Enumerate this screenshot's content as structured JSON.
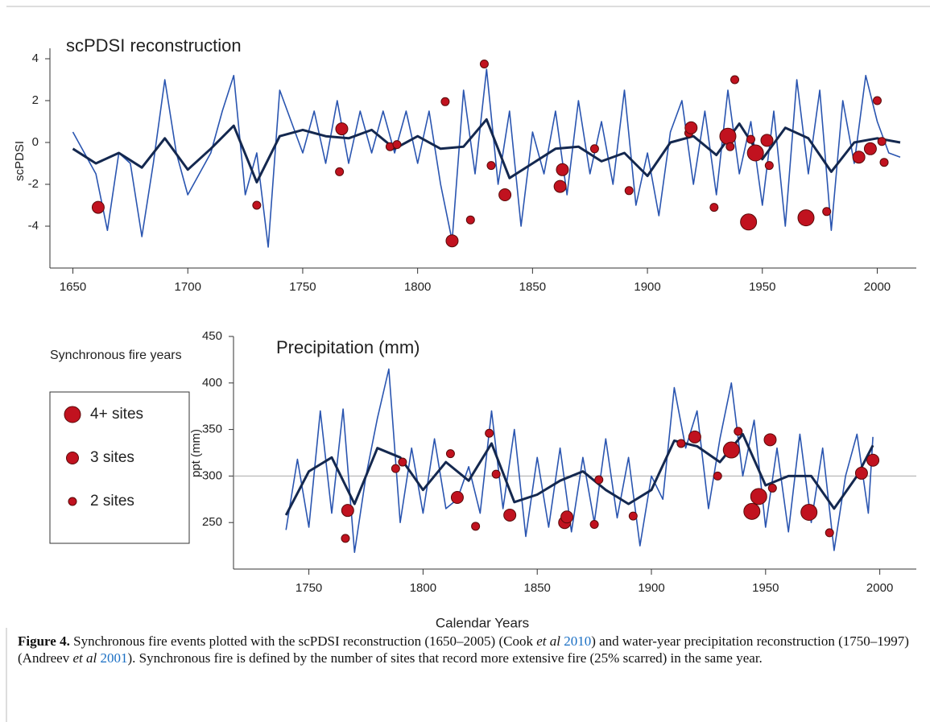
{
  "chart_data": [
    {
      "type": "line",
      "title": "scPDSI reconstruction",
      "y_label": "scPDSI",
      "xlim": [
        1640,
        2017
      ],
      "xticks": [
        1650,
        1700,
        1750,
        1800,
        1850,
        1900,
        1950,
        2000
      ],
      "ylim": [
        -6,
        4.5
      ],
      "yticks": [
        -4,
        -2,
        0,
        2,
        4
      ],
      "series": [
        {
          "color": "#2a55b0",
          "width": 1.6,
          "x": [
            1650,
            1655,
            1660,
            1665,
            1670,
            1675,
            1680,
            1685,
            1690,
            1695,
            1700,
            1705,
            1710,
            1715,
            1720,
            1725,
            1730,
            1735,
            1740,
            1745,
            1750,
            1755,
            1760,
            1765,
            1770,
            1775,
            1780,
            1785,
            1790,
            1795,
            1800,
            1805,
            1810,
            1815,
            1820,
            1825,
            1830,
            1835,
            1840,
            1845,
            1850,
            1855,
            1860,
            1865,
            1870,
            1875,
            1880,
            1885,
            1890,
            1895,
            1900,
            1905,
            1910,
            1915,
            1920,
            1925,
            1930,
            1935,
            1940,
            1945,
            1950,
            1955,
            1960,
            1965,
            1970,
            1975,
            1980,
            1985,
            1990,
            1995,
            2000,
            2005,
            2010
          ],
          "values": [
            0.5,
            -0.5,
            -1.5,
            -4.2,
            -0.5,
            -1.0,
            -4.5,
            -1.0,
            3.0,
            -0.5,
            -2.5,
            -1.5,
            -0.5,
            1.5,
            3.2,
            -2.5,
            -0.5,
            -5.0,
            2.5,
            1.0,
            -0.5,
            1.5,
            -1.0,
            2.0,
            -1.0,
            1.5,
            -0.5,
            1.5,
            -0.5,
            1.5,
            -1.0,
            1.5,
            -2.0,
            -4.7,
            2.5,
            -1.5,
            3.5,
            -2.0,
            1.5,
            -4.0,
            0.5,
            -1.5,
            1.5,
            -2.5,
            2.0,
            -1.5,
            1.0,
            -2.0,
            2.5,
            -3.0,
            -0.5,
            -3.5,
            0.5,
            2.0,
            -2.0,
            1.5,
            -2.5,
            2.5,
            -1.5,
            1.0,
            -3.0,
            1.5,
            -4.0,
            3.0,
            -1.5,
            2.5,
            -4.2,
            2.0,
            -1.0,
            3.2,
            1.0,
            -0.5,
            -0.7
          ]
        },
        {
          "color": "#14284f",
          "width": 3,
          "x": [
            1650,
            1660,
            1670,
            1680,
            1690,
            1700,
            1710,
            1720,
            1730,
            1740,
            1750,
            1760,
            1770,
            1780,
            1790,
            1800,
            1810,
            1820,
            1830,
            1840,
            1850,
            1860,
            1870,
            1880,
            1890,
            1900,
            1910,
            1920,
            1930,
            1940,
            1950,
            1960,
            1970,
            1980,
            1990,
            2000,
            2010
          ],
          "values": [
            -0.3,
            -1.0,
            -0.5,
            -1.2,
            0.2,
            -1.3,
            -0.3,
            0.8,
            -1.9,
            0.3,
            0.6,
            0.3,
            0.2,
            0.6,
            -0.3,
            0.3,
            -0.3,
            -0.2,
            1.1,
            -1.7,
            -1.0,
            -0.3,
            -0.2,
            -0.9,
            -0.5,
            -1.6,
            0.0,
            0.3,
            -0.6,
            0.9,
            -0.8,
            0.7,
            0.2,
            -1.4,
            0.0,
            0.2,
            0.0
          ]
        }
      ],
      "fire_events": {
        "color": "#c1121f",
        "x": [
          1661,
          1730,
          1766,
          1767,
          1788,
          1791,
          1812,
          1815,
          1823,
          1829,
          1832,
          1838,
          1862,
          1863,
          1877,
          1892,
          1918,
          1919,
          1929,
          1935,
          1936,
          1938,
          1944,
          1945,
          1947,
          1952,
          1953,
          1969,
          1978,
          1992,
          1997,
          2000,
          2002,
          2003
        ],
        "values": [
          -3.1,
          -3.0,
          -1.4,
          0.65,
          -0.2,
          -0.1,
          1.95,
          -4.7,
          -3.7,
          3.75,
          -1.1,
          -2.5,
          -2.1,
          -1.3,
          -0.3,
          -2.3,
          0.45,
          0.7,
          -3.1,
          0.3,
          -0.2,
          3.0,
          -3.8,
          0.15,
          -0.5,
          0.1,
          -1.1,
          -3.6,
          -3.3,
          -0.7,
          -0.3,
          2.0,
          0.05,
          -0.95
        ],
        "sites": [
          3,
          2,
          2,
          3,
          2,
          2,
          2,
          3,
          2,
          2,
          2,
          3,
          3,
          3,
          2,
          2,
          2,
          3,
          2,
          4,
          2,
          2,
          4,
          2,
          4,
          3,
          2,
          4,
          2,
          3,
          3,
          2,
          2,
          2
        ]
      }
    },
    {
      "type": "line",
      "title": "Precipitation (mm)",
      "y_label": "ppt (mm)",
      "x_label": "Calendar Years",
      "xlim": [
        1717,
        2016
      ],
      "xticks": [
        1750,
        1800,
        1850,
        1900,
        1950,
        2000
      ],
      "ylim": [
        200,
        450
      ],
      "yticks": [
        250,
        300,
        350,
        400,
        450
      ],
      "reference_line": 300,
      "series": [
        {
          "color": "#2a55b0",
          "width": 1.6,
          "x": [
            1740,
            1745,
            1750,
            1755,
            1760,
            1765,
            1770,
            1775,
            1780,
            1785,
            1790,
            1795,
            1800,
            1805,
            1810,
            1815,
            1820,
            1825,
            1830,
            1835,
            1840,
            1845,
            1850,
            1855,
            1860,
            1865,
            1870,
            1875,
            1880,
            1885,
            1890,
            1895,
            1900,
            1905,
            1910,
            1915,
            1920,
            1925,
            1930,
            1935,
            1940,
            1945,
            1950,
            1955,
            1960,
            1965,
            1970,
            1975,
            1980,
            1985,
            1990,
            1995,
            1997
          ],
          "values": [
            242,
            318,
            245,
            370,
            260,
            372,
            218,
            300,
            362,
            415,
            250,
            330,
            260,
            340,
            265,
            275,
            310,
            260,
            370,
            265,
            350,
            235,
            320,
            245,
            330,
            240,
            320,
            250,
            340,
            255,
            320,
            225,
            300,
            275,
            395,
            330,
            370,
            265,
            340,
            400,
            300,
            360,
            245,
            330,
            240,
            345,
            250,
            330,
            220,
            300,
            345,
            260,
            342
          ]
        },
        {
          "color": "#14284f",
          "width": 3,
          "x": [
            1740,
            1750,
            1760,
            1770,
            1780,
            1790,
            1800,
            1810,
            1820,
            1830,
            1840,
            1850,
            1860,
            1870,
            1880,
            1890,
            1900,
            1910,
            1920,
            1930,
            1940,
            1950,
            1960,
            1970,
            1980,
            1990,
            1997
          ],
          "values": [
            258,
            305,
            320,
            270,
            330,
            320,
            285,
            315,
            295,
            335,
            272,
            280,
            295,
            305,
            285,
            270,
            285,
            338,
            332,
            315,
            345,
            290,
            300,
            300,
            265,
            300,
            333
          ]
        }
      ],
      "fire_events": {
        "color": "#c1121f",
        "x": [
          1766,
          1767,
          1788,
          1791,
          1812,
          1815,
          1823,
          1829,
          1832,
          1838,
          1862,
          1863,
          1875,
          1877,
          1892,
          1913,
          1919,
          1929,
          1935,
          1938,
          1944,
          1947,
          1952,
          1953,
          1969,
          1978,
          1992,
          1997
        ],
        "values": [
          233,
          263,
          308,
          315,
          324,
          277,
          246,
          346,
          302,
          258,
          250,
          256,
          248,
          296,
          257,
          335,
          342,
          300,
          328,
          348,
          262,
          278,
          339,
          287,
          261,
          239,
          303,
          317
        ],
        "sites": [
          2,
          3,
          2,
          2,
          2,
          3,
          2,
          2,
          2,
          3,
          3,
          3,
          2,
          2,
          2,
          2,
          3,
          2,
          4,
          2,
          4,
          4,
          3,
          2,
          4,
          2,
          3,
          3
        ]
      }
    }
  ],
  "legend": {
    "title": "Synchronous fire years",
    "items": [
      {
        "value": 4,
        "label": "4+ sites"
      },
      {
        "value": 3,
        "label": "3 sites"
      },
      {
        "value": 2,
        "label": "2 sites"
      }
    ]
  },
  "caption": [
    {
      "text": "Figure 4.",
      "style": "b"
    },
    {
      "text": " Synchronous fire events plotted with the scPDSI reconstruction (1650–2005) (Cook ",
      "style": "n"
    },
    {
      "text": "et al",
      "style": "i"
    },
    {
      "text": " ",
      "style": "n"
    },
    {
      "text": "2010",
      "style": "l"
    },
    {
      "text": ") and water-year precipitation reconstruction (1750–1997) (Andreev ",
      "style": "n"
    },
    {
      "text": "et al",
      "style": "i"
    },
    {
      "text": " ",
      "style": "n"
    },
    {
      "text": "2001",
      "style": "l"
    },
    {
      "text": "). Synchronous fire is defined by the number of sites that record more extensive fire (25% scarred) in the same year.",
      "style": "n"
    }
  ]
}
